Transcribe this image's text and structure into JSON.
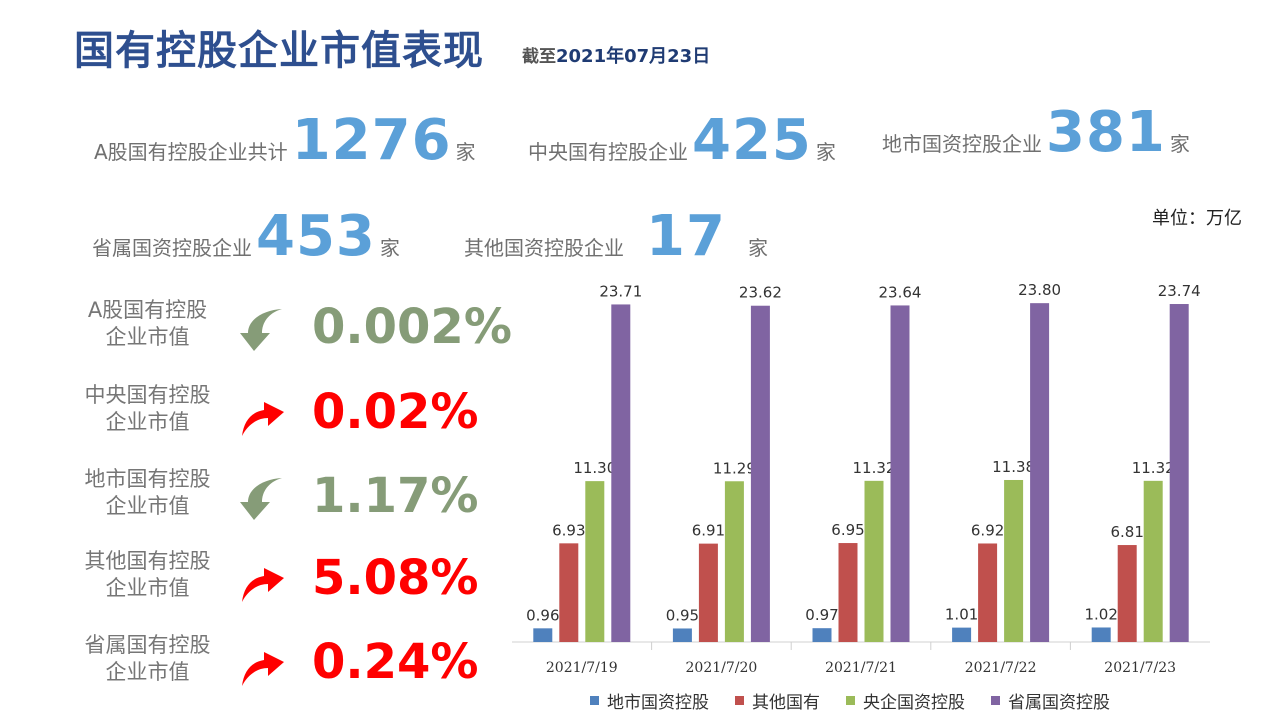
{
  "header": {
    "title": "国有控股企业市值表现",
    "subtitle_prefix": "截至",
    "subtitle_date": "2021年07月23日"
  },
  "stats": [
    {
      "label": "A股国有控股企业共计",
      "value": "1276",
      "unit": "家"
    },
    {
      "label": "中央国有控股企业",
      "value": "425",
      "unit": "家"
    },
    {
      "label": "地市国资控股企业",
      "value": "381",
      "unit": "家"
    },
    {
      "label": "省属国资控股企业",
      "value": "453",
      "unit": "家"
    },
    {
      "label": "其他国资控股企业",
      "value": "17",
      "unit": "家"
    }
  ],
  "unit_note": "单位：万亿",
  "changes": [
    {
      "line1": "A股国有控股",
      "line2": "企业市值",
      "direction": "down",
      "value": "0.002%"
    },
    {
      "line1": "中央国有控股",
      "line2": "企业市值",
      "direction": "up",
      "value": "0.02%"
    },
    {
      "line1": "地市国有控股",
      "line2": "企业市值",
      "direction": "down",
      "value": "1.17%"
    },
    {
      "line1": "其他国有控股",
      "line2": "企业市值",
      "direction": "up",
      "value": "5.08%"
    },
    {
      "line1": "省属国有控股",
      "line2": "企业市值",
      "direction": "up",
      "value": "0.24%"
    }
  ],
  "colors": {
    "title": "#2e4f8f",
    "stat_number": "#5ba0d8",
    "down_arrow": "#869c78",
    "up_arrow": "#ff0000"
  },
  "chart_data": {
    "type": "bar",
    "categories": [
      "2021/7/19",
      "2021/7/20",
      "2021/7/21",
      "2021/7/22",
      "2021/7/23"
    ],
    "series": [
      {
        "name": "地市国资控股",
        "color": "#4f81bd",
        "values": [
          0.96,
          0.95,
          0.97,
          1.01,
          1.02
        ]
      },
      {
        "name": "其他国有",
        "color": "#c0504d",
        "values": [
          6.93,
          6.91,
          6.95,
          6.92,
          6.81
        ]
      },
      {
        "name": "央企国资控股",
        "color": "#9bbb59",
        "values": [
          11.3,
          11.29,
          11.32,
          11.38,
          11.32
        ]
      },
      {
        "name": "省属国资控股",
        "color": "#8064a2",
        "values": [
          23.71,
          23.62,
          23.64,
          23.8,
          23.74
        ]
      }
    ],
    "ylim": [
      0,
      25
    ],
    "grid": false,
    "legend": "bottom",
    "data_labels": true
  }
}
